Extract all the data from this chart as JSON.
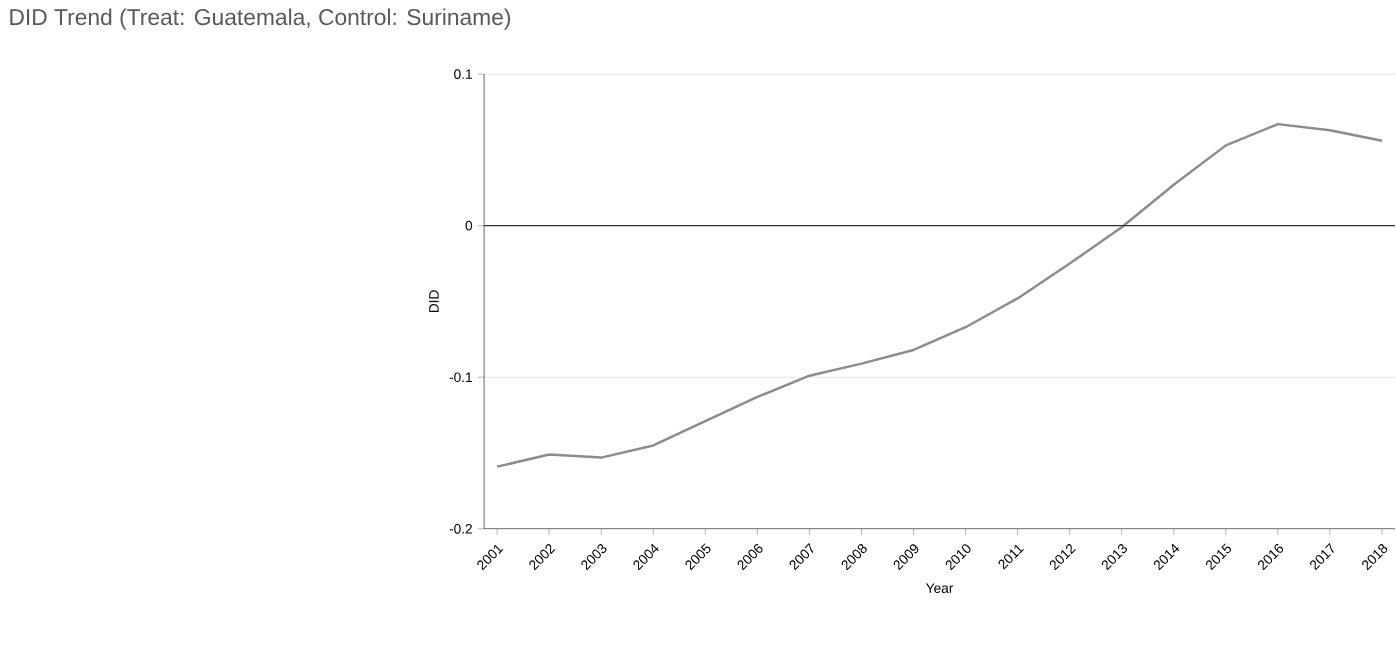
{
  "chart_data": {
    "type": "line",
    "title": "DID Trend (Treat: Guatemala, Control: Suriname)",
    "xlabel": "Year",
    "ylabel": "DID",
    "categories": [
      "2001",
      "2002",
      "2003",
      "2004",
      "2005",
      "2006",
      "2007",
      "2008",
      "2009",
      "2010",
      "2011",
      "2012",
      "2013",
      "2014",
      "2015",
      "2016",
      "2017",
      "2018"
    ],
    "series": [
      {
        "color": "#8c8c8c",
        "values": [
          -0.159,
          -0.151,
          -0.153,
          -0.145,
          -0.129,
          -0.113,
          -0.099,
          -0.091,
          -0.082,
          -0.067,
          -0.048,
          -0.025,
          -0.001,
          0.027,
          0.053,
          0.067,
          0.063,
          0.056
        ]
      }
    ],
    "ylim": [
      -0.2,
      0.1
    ],
    "yticks": [
      -0.2,
      -0.1,
      0,
      0.1
    ],
    "grid": "y",
    "ref_lines": [
      {
        "axis": "y",
        "value": 0,
        "color": "#333333"
      }
    ]
  }
}
